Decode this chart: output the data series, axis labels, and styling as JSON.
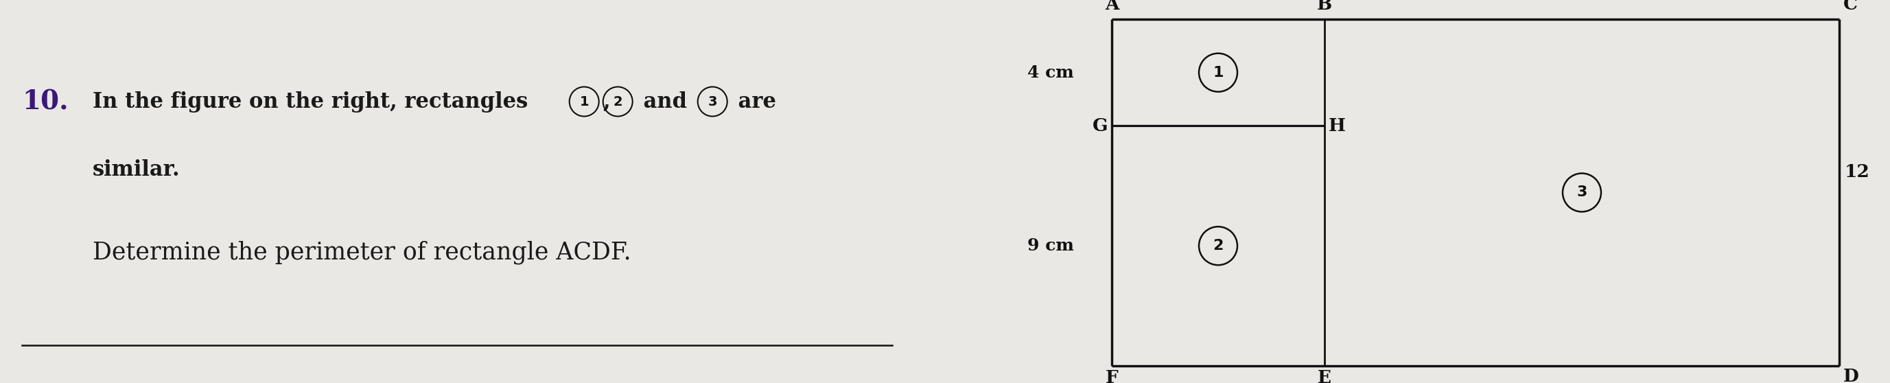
{
  "bg_color": "#eae8e5",
  "text_color": "#1a1a1a",
  "line_color": "#111111",
  "number_bold_color": "#3a1878",
  "title_number": "10.",
  "line1_part1": "In the figure on the right, rectangles ",
  "line1_circled": [
    "1",
    "2",
    "3"
  ],
  "line1_part2": ",",
  "line1_part3": " and ",
  "line1_part4": " are",
  "line2": "similar.",
  "line3": "Determine the perimeter of rectangle ACDF.",
  "label_A": "A",
  "label_B": "B",
  "label_C": "C",
  "label_D": "D",
  "label_E": "E",
  "label_F": "F",
  "label_G": "G",
  "label_H": "H",
  "dim_4cm": "4 cm",
  "dim_9cm": "9 cm",
  "dim_12": "12",
  "font_size_main": 22,
  "font_size_labels": 19,
  "font_size_dim": 18,
  "font_size_number": 28,
  "font_size_circle_num": 14
}
